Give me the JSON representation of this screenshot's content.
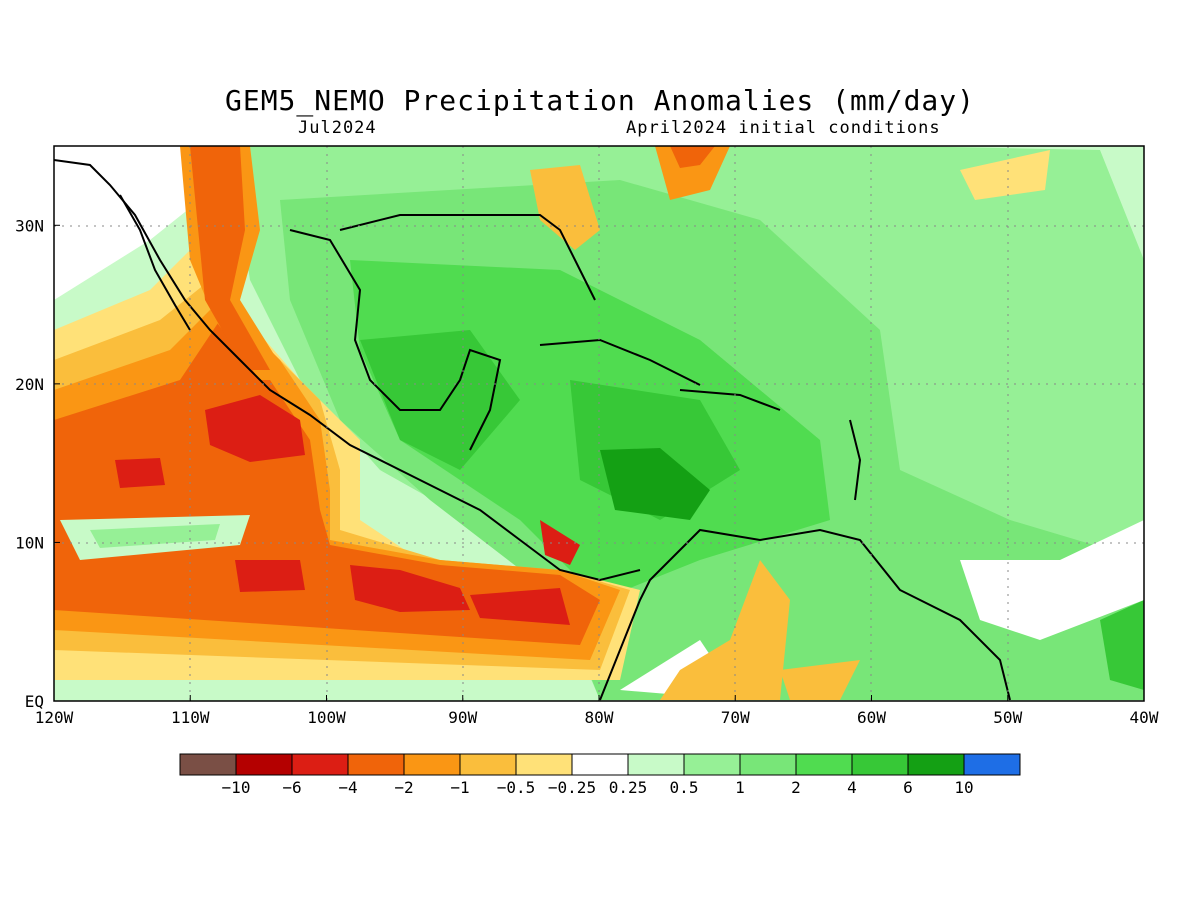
{
  "title": "GEM5_NEMO Precipitation Anomalies (mm/day)",
  "subtitle_left": "Jul2024",
  "subtitle_right": "April2024 initial conditions",
  "map": {
    "lon_range": [
      -120,
      -40
    ],
    "lat_range": [
      0,
      35
    ],
    "x_ticks": [
      {
        "lon": -120,
        "label": "120W"
      },
      {
        "lon": -110,
        "label": "110W"
      },
      {
        "lon": -100,
        "label": "100W"
      },
      {
        "lon": -90,
        "label": "90W"
      },
      {
        "lon": -80,
        "label": "80W"
      },
      {
        "lon": -70,
        "label": "70W"
      },
      {
        "lon": -60,
        "label": "60W"
      },
      {
        "lon": -50,
        "label": "50W"
      },
      {
        "lon": -40,
        "label": "40W"
      }
    ],
    "y_ticks": [
      {
        "lat": 0,
        "label": "EQ"
      },
      {
        "lat": 10,
        "label": "10N"
      },
      {
        "lat": 20,
        "label": "20N"
      },
      {
        "lat": 30,
        "label": "30N"
      }
    ],
    "grid": true
  },
  "colorbar": {
    "colors": [
      "#7a4f45",
      "#b40000",
      "#dc1e14",
      "#f0640a",
      "#fa9614",
      "#fabe3c",
      "#ffe178",
      "#ffffff",
      "#c8fac8",
      "#96f096",
      "#78e678",
      "#50dc50",
      "#37c837",
      "#14a014",
      "#1e6ee6"
    ],
    "labels": [
      "−10",
      "−6",
      "−4",
      "−2",
      "−1",
      "−0.5",
      "−0.25",
      "0.25",
      "0.5",
      "1",
      "2",
      "4",
      "6",
      "10"
    ]
  }
}
